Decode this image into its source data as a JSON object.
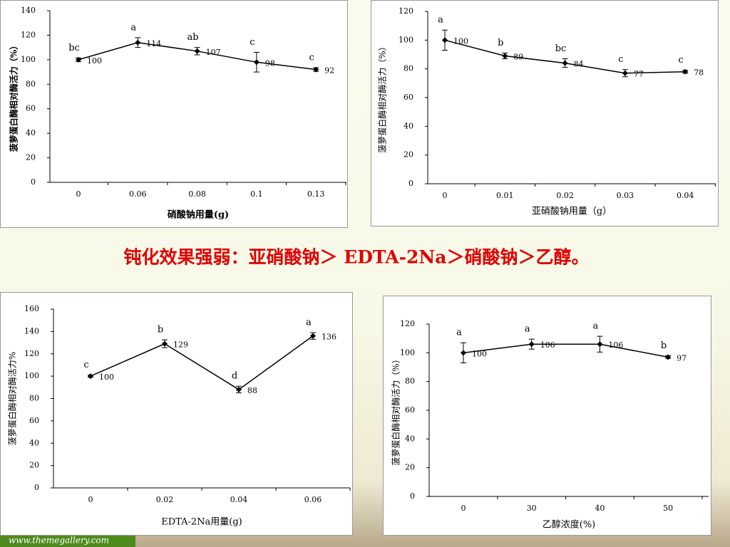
{
  "headline": "钝化效果强弱：亚硝酸钠＞ EDTA-2Na＞硝酸钠＞乙醇。",
  "footer": "www.themegallery.com",
  "chart_data": [
    {
      "type": "line",
      "x_label": "硝酸钠用量(g)",
      "y_label": "菠萝蛋白酶相对酶活力（%）",
      "categories": [
        "0",
        "0.06",
        "0.08",
        "0.1",
        "0.13"
      ],
      "values": [
        100,
        114,
        107,
        98,
        92
      ],
      "errors": [
        1.5,
        4,
        3,
        8,
        1.5
      ],
      "letters": [
        "bc",
        "a",
        "ab",
        "c",
        "c"
      ],
      "color": "#000000",
      "ylim": [
        0,
        140
      ],
      "yticks": [
        0,
        20,
        40,
        60,
        80,
        100,
        120,
        140
      ]
    },
    {
      "type": "line",
      "x_label": "亚硝酸钠用量（g）",
      "y_label": "菠萝蛋白酶相对酶活力（%）",
      "categories": [
        "0",
        "0.01",
        "0.02",
        "0.03",
        "0.04"
      ],
      "values": [
        100,
        89,
        84,
        77,
        78
      ],
      "errors": [
        7,
        2,
        3,
        2.5,
        1
      ],
      "letters": [
        "a",
        "b",
        "bc",
        "c",
        "c"
      ],
      "color": "#000000",
      "ylim": [
        0,
        120
      ],
      "yticks": [
        0,
        20,
        40,
        60,
        80,
        100,
        120
      ]
    },
    {
      "type": "line",
      "x_label": "EDTA-2Na用量(g)",
      "y_label": "菠萝蛋白酶相对酶活力%",
      "categories": [
        "0",
        "0.02",
        "0.04",
        "0.06"
      ],
      "values": [
        100,
        129,
        88,
        136
      ],
      "errors": [
        1,
        3.5,
        3,
        3
      ],
      "letters": [
        "c",
        "b",
        "d",
        "a"
      ],
      "color": "#000000",
      "ylim": [
        0,
        160
      ],
      "yticks": [
        0,
        20,
        40,
        60,
        80,
        100,
        120,
        140,
        160
      ]
    },
    {
      "type": "line",
      "x_label": "乙醇浓度(%)",
      "y_label": "菠萝蛋白酶相对酶活力（%）",
      "categories": [
        "0",
        "30",
        "40",
        "50"
      ],
      "values": [
        100,
        106,
        106,
        97
      ],
      "errors": [
        7,
        3.5,
        5.5,
        1
      ],
      "letters": [
        "a",
        "a",
        "a",
        "b"
      ],
      "color": "#000000",
      "ylim": [
        0,
        120
      ],
      "yticks": [
        0,
        20,
        40,
        60,
        80,
        100,
        120
      ]
    }
  ]
}
